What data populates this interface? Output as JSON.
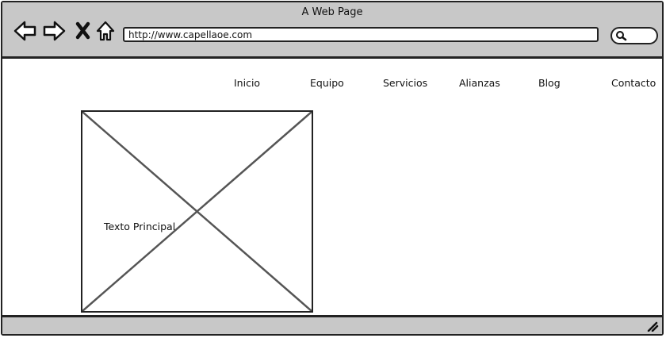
{
  "window": {
    "title": "A Web Page"
  },
  "toolbar": {
    "url": "http://www.capellaoe.com",
    "icons": [
      "back-arrow-icon",
      "forward-arrow-icon",
      "close-icon",
      "home-icon",
      "search-icon"
    ]
  },
  "nav": {
    "items": [
      {
        "label": "Inicio"
      },
      {
        "label": "Equipo"
      },
      {
        "label": "Servicios"
      },
      {
        "label": "Alianzas"
      },
      {
        "label": "Blog"
      },
      {
        "label": "Contacto"
      }
    ]
  },
  "hero": {
    "label": "Texto Principal"
  },
  "colors": {
    "chrome": "#c8c8c8",
    "stroke": "#222222",
    "background": "#ffffff"
  }
}
